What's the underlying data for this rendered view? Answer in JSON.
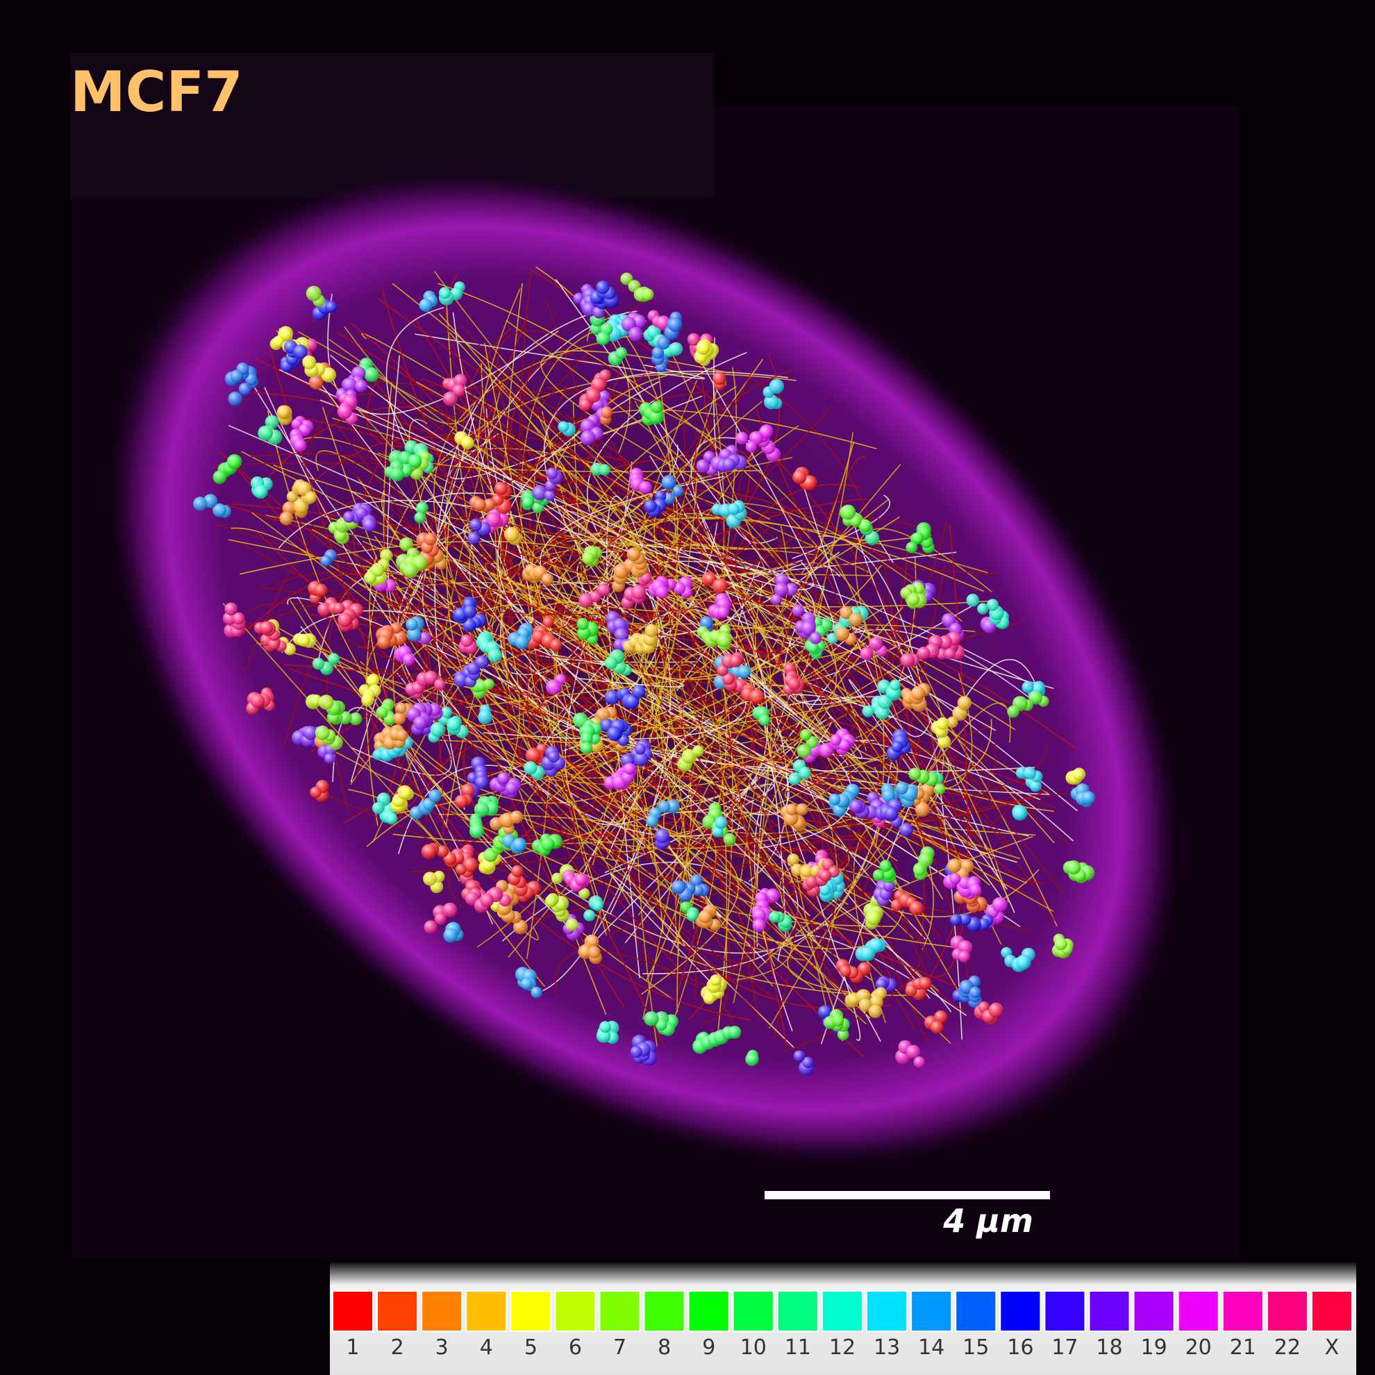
{
  "title": "MCF7",
  "scale_bar": {
    "label": "4 μm"
  },
  "legend": {
    "items": [
      {
        "label": "1",
        "color": "#ff0000"
      },
      {
        "label": "2",
        "color": "#ff4000"
      },
      {
        "label": "3",
        "color": "#ff8000"
      },
      {
        "label": "4",
        "color": "#ffbf00"
      },
      {
        "label": "5",
        "color": "#ffff00"
      },
      {
        "label": "6",
        "color": "#bfff00"
      },
      {
        "label": "7",
        "color": "#80ff00"
      },
      {
        "label": "8",
        "color": "#40ff00"
      },
      {
        "label": "9",
        "color": "#00ff00"
      },
      {
        "label": "10",
        "color": "#00ff40"
      },
      {
        "label": "11",
        "color": "#00ff80"
      },
      {
        "label": "12",
        "color": "#00ffd0"
      },
      {
        "label": "13",
        "color": "#00e0ff"
      },
      {
        "label": "14",
        "color": "#0099ff"
      },
      {
        "label": "15",
        "color": "#0060ff"
      },
      {
        "label": "16",
        "color": "#0000ff"
      },
      {
        "label": "17",
        "color": "#3300ff"
      },
      {
        "label": "18",
        "color": "#6a00ff"
      },
      {
        "label": "19",
        "color": "#aa00ff"
      },
      {
        "label": "20",
        "color": "#ee00ff"
      },
      {
        "label": "21",
        "color": "#ff00bf"
      },
      {
        "label": "22",
        "color": "#ff0080"
      },
      {
        "label": "X",
        "color": "#ff0040"
      }
    ]
  }
}
